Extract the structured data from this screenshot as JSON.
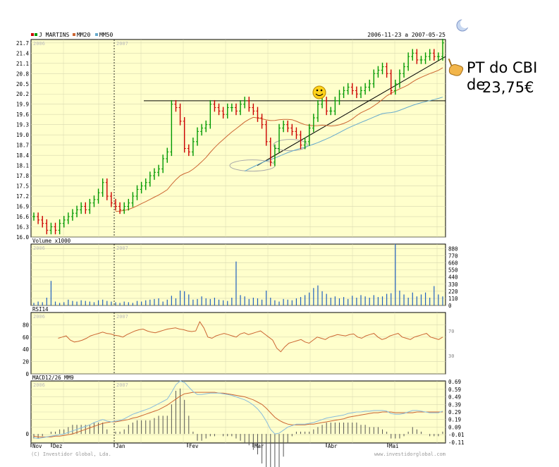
{
  "header": {
    "series_labels": [
      "J MARTINS",
      "MM20",
      "MM50"
    ],
    "date_range": "2006-11-23 a 2007-05-25"
  },
  "annotation": {
    "line1": "PT do CBI de",
    "line2": "23,75€"
  },
  "footer": {
    "copyright": "(C) Investidor Global, Lda.",
    "website": "www.investidorglobal.com"
  },
  "colors": {
    "panel_bg": "#ffffcc",
    "grid": "#d8d8b0",
    "candle_up": "#009900",
    "candle_down": "#cc0000",
    "mm20": "#cc6633",
    "mm50": "#66aacc",
    "volume": "#1f5fbf",
    "rsi": "#cc6633",
    "macd": "#88bbdd",
    "signal": "#cc6633",
    "hist": "#555555"
  },
  "chart_data": [
    {
      "type": "candlestick",
      "title": "",
      "series": [
        {
          "name": "J MARTINS"
        },
        {
          "name": "MM20"
        },
        {
          "name": "MM50"
        }
      ],
      "ylim": [
        16.0,
        21.8
      ],
      "yticks": [
        16.0,
        16.3,
        16.6,
        16.9,
        17.2,
        17.5,
        17.8,
        18.1,
        18.4,
        18.7,
        19.0,
        19.3,
        19.6,
        19.9,
        20.2,
        20.5,
        20.8,
        21.1,
        21.4,
        21.7
      ],
      "year_labels": [
        "2006",
        "2007"
      ],
      "x_month_labels": [
        "Nov",
        "Dez",
        "Jan",
        "Fev",
        "Mar",
        "Abr",
        "Mai"
      ],
      "horizontal_line": 20.0,
      "price_close": [
        16.6,
        16.5,
        16.4,
        16.2,
        16.3,
        16.2,
        16.4,
        16.5,
        16.6,
        16.7,
        16.8,
        16.9,
        16.8,
        17.0,
        17.1,
        17.3,
        17.6,
        17.2,
        17.0,
        16.9,
        16.8,
        16.9,
        17.0,
        17.2,
        17.4,
        17.5,
        17.6,
        17.8,
        17.9,
        18.0,
        18.3,
        18.5,
        19.9,
        19.8,
        19.4,
        18.6,
        18.5,
        18.8,
        19.1,
        19.2,
        19.3,
        19.9,
        19.8,
        19.7,
        19.6,
        19.8,
        19.8,
        19.7,
        19.9,
        20.0,
        19.8,
        19.7,
        19.5,
        19.3,
        18.8,
        18.2,
        18.6,
        19.2,
        19.3,
        19.2,
        19.1,
        19.0,
        18.7,
        18.8,
        19.2,
        19.5,
        19.9,
        20.0,
        19.7,
        19.7,
        20.0,
        20.2,
        20.3,
        20.4,
        20.3,
        20.2,
        20.3,
        20.4,
        20.5,
        20.8,
        20.9,
        21.0,
        20.8,
        20.3,
        20.5,
        20.8,
        21.0,
        21.3,
        21.4,
        21.2,
        21.2,
        21.3,
        21.4,
        21.3,
        21.3,
        21.7
      ],
      "volume_yticks": [
        0,
        110,
        220,
        330,
        440,
        550,
        660,
        770,
        880
      ],
      "volume": [
        40,
        60,
        50,
        120,
        380,
        60,
        40,
        50,
        90,
        70,
        60,
        80,
        70,
        60,
        50,
        80,
        90,
        70,
        60,
        50,
        40,
        60,
        50,
        40,
        70,
        60,
        80,
        90,
        100,
        110,
        60,
        90,
        150,
        110,
        230,
        220,
        170,
        90,
        100,
        140,
        110,
        100,
        120,
        90,
        80,
        70,
        120,
        680,
        160,
        140,
        100,
        120,
        110,
        90,
        230,
        120,
        80,
        60,
        100,
        90,
        80,
        110,
        130,
        160,
        200,
        270,
        310,
        220,
        180,
        120,
        140,
        110,
        130,
        100,
        150,
        120,
        160,
        140,
        120,
        160,
        130,
        140,
        180,
        190,
        950,
        230,
        170,
        120,
        200,
        140,
        170,
        200,
        120,
        300,
        170,
        140
      ],
      "rsi_yticks": [
        0,
        20,
        40,
        60,
        80
      ],
      "rsi": [
        58,
        60,
        62,
        55,
        52,
        53,
        55,
        58,
        62,
        64,
        66,
        68,
        66,
        65,
        63,
        62,
        60,
        64,
        67,
        70,
        72,
        73,
        70,
        68,
        67,
        69,
        71,
        73,
        74,
        75,
        73,
        72,
        70,
        69,
        70,
        85,
        75,
        60,
        58,
        62,
        64,
        66,
        64,
        62,
        60,
        65,
        67,
        64,
        66,
        68,
        70,
        65,
        60,
        55,
        42,
        36,
        44,
        50,
        52,
        54,
        56,
        52,
        50,
        55,
        60,
        58,
        56,
        60,
        62,
        64,
        63,
        62,
        64,
        65,
        60,
        58,
        62,
        64,
        66,
        60,
        56,
        58,
        62,
        64,
        66,
        60,
        58,
        56,
        60,
        62,
        64,
        66,
        60,
        58,
        56,
        60
      ],
      "macd_yticks": [
        -0.11,
        -0.01,
        0.09,
        0.19,
        0.29,
        0.39,
        0.49,
        0.59,
        0.69
      ],
      "series_macd": [
        {
          "name": "MACD12/26",
          "values": [
            -0.05,
            -0.06,
            -0.05,
            -0.04,
            -0.03,
            -0.02,
            -0.01,
            0.0,
            0.02,
            0.04,
            0.06,
            0.08,
            0.1,
            0.12,
            0.15,
            0.17,
            0.19,
            0.17,
            0.16,
            0.17,
            0.18,
            0.2,
            0.23,
            0.26,
            0.28,
            0.3,
            0.32,
            0.34,
            0.37,
            0.4,
            0.43,
            0.46,
            0.55,
            0.65,
            0.7,
            0.68,
            0.62,
            0.56,
            0.52,
            0.52,
            0.53,
            0.54,
            0.54,
            0.54,
            0.53,
            0.52,
            0.51,
            0.49,
            0.47,
            0.45,
            0.42,
            0.38,
            0.33,
            0.26,
            0.17,
            0.06,
            0.0,
            0.01,
            0.05,
            0.09,
            0.11,
            0.13,
            0.13,
            0.13,
            0.14,
            0.15,
            0.17,
            0.19,
            0.21,
            0.22,
            0.23,
            0.24,
            0.25,
            0.27,
            0.28,
            0.29,
            0.29,
            0.3,
            0.3,
            0.31,
            0.31,
            0.31,
            0.3,
            0.27,
            0.26,
            0.26,
            0.27,
            0.29,
            0.31,
            0.31,
            0.3,
            0.29,
            0.28,
            0.28,
            0.28,
            0.3
          ]
        },
        {
          "name": "MM9",
          "values": [
            -0.03,
            -0.04,
            -0.04,
            -0.04,
            -0.04,
            -0.03,
            -0.03,
            -0.02,
            -0.01,
            0.0,
            0.02,
            0.04,
            0.06,
            0.08,
            0.1,
            0.12,
            0.14,
            0.15,
            0.16,
            0.16,
            0.17,
            0.18,
            0.19,
            0.21,
            0.22,
            0.24,
            0.26,
            0.28,
            0.3,
            0.32,
            0.35,
            0.38,
            0.42,
            0.46,
            0.5,
            0.53,
            0.54,
            0.55,
            0.55,
            0.55,
            0.55,
            0.55,
            0.55,
            0.54,
            0.54,
            0.53,
            0.52,
            0.51,
            0.5,
            0.49,
            0.47,
            0.45,
            0.42,
            0.39,
            0.34,
            0.28,
            0.22,
            0.18,
            0.15,
            0.13,
            0.12,
            0.12,
            0.12,
            0.12,
            0.13,
            0.13,
            0.14,
            0.15,
            0.16,
            0.17,
            0.18,
            0.19,
            0.2,
            0.22,
            0.23,
            0.24,
            0.25,
            0.26,
            0.27,
            0.28,
            0.28,
            0.29,
            0.29,
            0.29,
            0.28,
            0.28,
            0.28,
            0.28,
            0.28,
            0.29,
            0.29,
            0.29,
            0.29,
            0.29,
            0.29,
            0.29
          ]
        }
      ]
    }
  ]
}
